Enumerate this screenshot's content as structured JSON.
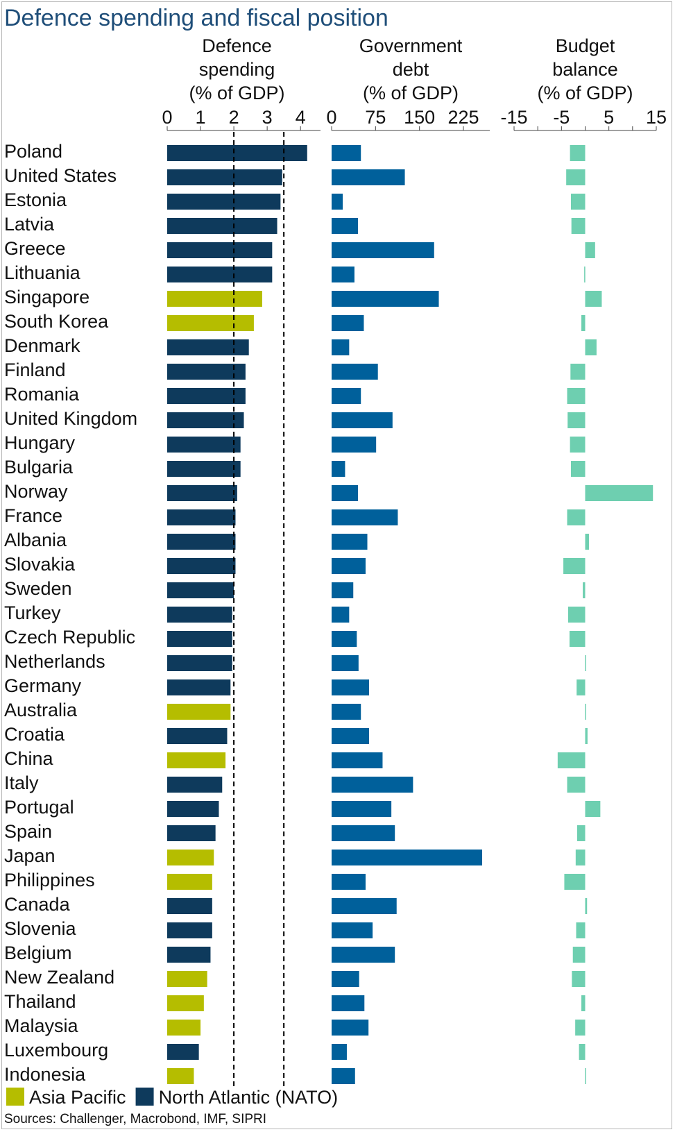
{
  "chart_data": {
    "type": "bar",
    "title": "Defence spending and fiscal position",
    "source": "Sources: Challenger, Macrobond, IMF, SIPRI",
    "categories": [
      "Poland",
      "United States",
      "Estonia",
      "Latvia",
      "Greece",
      "Lithuania",
      "Singapore",
      "South Korea",
      "Denmark",
      "Finland",
      "Romania",
      "United Kingdom",
      "Hungary",
      "Bulgaria",
      "Norway",
      "France",
      "Albania",
      "Slovakia",
      "Sweden",
      "Turkey",
      "Czech Republic",
      "Netherlands",
      "Germany",
      "Australia",
      "Croatia",
      "China",
      "Italy",
      "Portugal",
      "Spain",
      "Japan",
      "Philippines",
      "Canada",
      "Slovenia",
      "Belgium",
      "New Zealand",
      "Thailand",
      "Malaysia",
      "Luxembourg",
      "Indonesia"
    ],
    "region": [
      "NATO",
      "NATO",
      "NATO",
      "NATO",
      "NATO",
      "NATO",
      "AP",
      "AP",
      "NATO",
      "NATO",
      "NATO",
      "NATO",
      "NATO",
      "NATO",
      "NATO",
      "NATO",
      "NATO",
      "NATO",
      "NATO",
      "NATO",
      "NATO",
      "NATO",
      "NATO",
      "AP",
      "NATO",
      "AP",
      "NATO",
      "NATO",
      "NATO",
      "AP",
      "AP",
      "NATO",
      "NATO",
      "NATO",
      "AP",
      "AP",
      "AP",
      "NATO",
      "AP"
    ],
    "legend": [
      {
        "key": "AP",
        "label": "Asia Pacific",
        "color": "#b5bd00"
      },
      {
        "key": "NATO",
        "label": "North Atlantic (NATO)",
        "color": "#0e3a5c"
      }
    ],
    "panels": [
      {
        "id": "defence",
        "title_lines": [
          "Defence",
          "spending",
          "(% of GDP)"
        ],
        "xlim": [
          0,
          4.6
        ],
        "ticks": [
          0,
          1,
          2,
          3,
          4
        ],
        "tick_labels": [
          "0",
          "1",
          "2",
          "3",
          "4"
        ],
        "reference_lines": [
          2,
          3.5
        ],
        "values": [
          4.2,
          3.45,
          3.4,
          3.3,
          3.15,
          3.15,
          2.85,
          2.6,
          2.45,
          2.35,
          2.35,
          2.3,
          2.2,
          2.2,
          2.1,
          2.05,
          2.05,
          2.05,
          2.0,
          1.95,
          1.95,
          1.95,
          1.9,
          1.9,
          1.8,
          1.75,
          1.65,
          1.55,
          1.45,
          1.4,
          1.35,
          1.35,
          1.35,
          1.3,
          1.2,
          1.1,
          1.0,
          0.95,
          0.8
        ]
      },
      {
        "id": "debt",
        "title_lines": [
          "Government",
          "debt",
          "(% of GDP)"
        ],
        "xlim": [
          0,
          270
        ],
        "ticks": [
          0,
          75,
          150,
          225
        ],
        "tick_labels": [
          "0",
          "75",
          "150",
          "225"
        ],
        "color": "#00609b",
        "values": [
          50,
          125,
          19,
          45,
          175,
          39,
          183,
          55,
          30,
          79,
          50,
          104,
          76,
          23,
          45,
          113,
          61,
          58,
          37,
          30,
          43,
          46,
          64,
          50,
          64,
          87,
          139,
          102,
          108,
          257,
          58,
          111,
          70,
          108,
          47,
          56,
          63,
          26,
          40
        ]
      },
      {
        "id": "balance",
        "title_lines": [
          "Budget",
          "balance",
          "(% of GDP)"
        ],
        "xlim": [
          -15,
          15
        ],
        "ticks": [
          -15,
          -10,
          -5,
          0,
          5,
          10,
          15
        ],
        "tick_labels": [
          "-15",
          "",
          "-5",
          "",
          "5",
          "",
          "15"
        ],
        "color": "#6ecfb0",
        "values": [
          -3.2,
          -4.0,
          -3.0,
          -2.9,
          2.1,
          -0.2,
          3.5,
          -0.8,
          2.4,
          -3.1,
          -3.8,
          -3.7,
          -3.2,
          -3.0,
          14.3,
          -3.8,
          0.8,
          -4.6,
          -0.5,
          -3.6,
          -3.3,
          0.1,
          -1.8,
          0.1,
          0.5,
          -5.8,
          -3.8,
          3.2,
          -1.7,
          -2.0,
          -4.4,
          0.4,
          -1.9,
          -2.6,
          -2.8,
          -0.8,
          -2.1,
          -1.3,
          0.2
        ]
      }
    ]
  }
}
